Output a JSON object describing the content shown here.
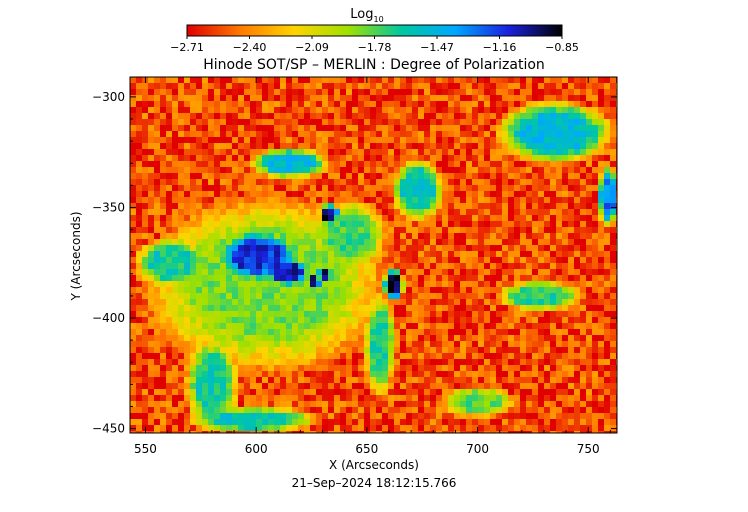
{
  "chart_data": {
    "type": "heatmap",
    "title": "Hinode SOT/SP – MERLIN : Degree of Polarization",
    "xlabel": "X (Arcseconds)",
    "ylabel": "Y (Arcseconds)",
    "timestamp": "21–Sep–2024 18:12:15.766",
    "colorbar": {
      "label_main": "Log",
      "label_sub": "10",
      "range": [
        -2.71,
        -0.85
      ],
      "tick_labels": [
        "−2.71",
        "−2.40",
        "−2.09",
        "−1.78",
        "−1.47",
        "−1.16",
        "−0.85"
      ],
      "tick_values": [
        -2.71,
        -2.4,
        -2.09,
        -1.78,
        -1.47,
        -1.16,
        -0.85
      ],
      "colormap": [
        "#e00000",
        "#ff7a00",
        "#ffd400",
        "#a0e000",
        "#00c8a0",
        "#00a8ff",
        "#1a20e0",
        "#000000"
      ]
    },
    "xlim": [
      543,
      763
    ],
    "ylim": [
      -452,
      -291
    ],
    "x_ticks": [
      550,
      600,
      650,
      700,
      750
    ],
    "x_tick_labels": [
      "550",
      "600",
      "650",
      "700",
      "750"
    ],
    "y_ticks": [
      -300,
      -350,
      -400,
      -450
    ],
    "y_tick_labels": [
      "−300",
      "−350",
      "−400",
      "−450"
    ],
    "background_level": -2.55,
    "features": [
      {
        "x": 601,
        "y": -372,
        "rx": 16,
        "ry": 10,
        "level": -1.15
      },
      {
        "x": 614,
        "y": -379,
        "rx": 9,
        "ry": 6,
        "level": -1.1
      },
      {
        "x": 633,
        "y": -353,
        "rx": 4,
        "ry": 4,
        "level": -0.95
      },
      {
        "x": 626,
        "y": -384,
        "rx": 3,
        "ry": 3,
        "level": -0.95
      },
      {
        "x": 631,
        "y": -380,
        "rx": 3,
        "ry": 3,
        "level": -0.95
      },
      {
        "x": 662,
        "y": -385,
        "rx": 4,
        "ry": 6,
        "level": -0.9
      },
      {
        "x": 604,
        "y": -385,
        "rx": 45,
        "ry": 33,
        "level": -1.85
      },
      {
        "x": 642,
        "y": -363,
        "rx": 14,
        "ry": 14,
        "level": -1.75
      },
      {
        "x": 580,
        "y": -430,
        "rx": 10,
        "ry": 18,
        "level": -1.65
      },
      {
        "x": 615,
        "y": -330,
        "rx": 15,
        "ry": 6,
        "level": -1.5
      },
      {
        "x": 673,
        "y": -342,
        "rx": 10,
        "ry": 12,
        "level": -1.6
      },
      {
        "x": 735,
        "y": -316,
        "rx": 22,
        "ry": 12,
        "level": -1.5
      },
      {
        "x": 759,
        "y": -345,
        "rx": 4,
        "ry": 12,
        "level": -1.3
      },
      {
        "x": 728,
        "y": -390,
        "rx": 16,
        "ry": 6,
        "level": -1.7
      },
      {
        "x": 656,
        "y": -412,
        "rx": 6,
        "ry": 20,
        "level": -1.7
      },
      {
        "x": 562,
        "y": -375,
        "rx": 14,
        "ry": 10,
        "level": -1.65
      },
      {
        "x": 700,
        "y": -438,
        "rx": 14,
        "ry": 6,
        "level": -1.8
      },
      {
        "x": 598,
        "y": -446,
        "rx": 25,
        "ry": 5,
        "level": -1.6
      }
    ]
  }
}
